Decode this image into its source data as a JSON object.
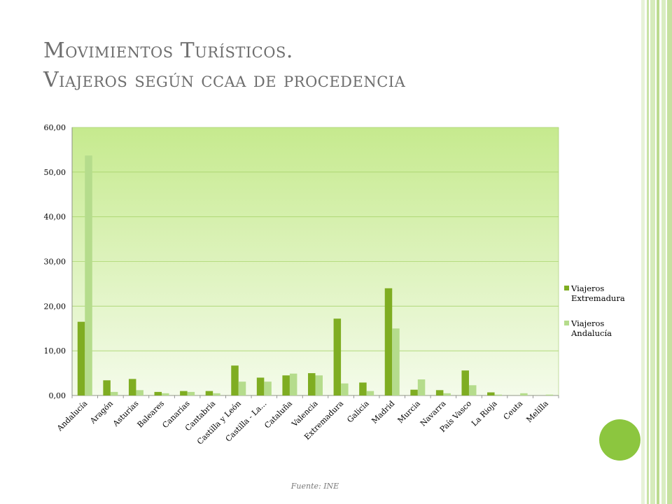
{
  "title": {
    "line1": "Movimientos Turísticos.",
    "line2": "Viajeros según ccaa de procedencia"
  },
  "source": "Fuente: INE",
  "colors": {
    "series1": "#7fad22",
    "series2": "#b5dc8c",
    "plot_top": "#c6ea8e",
    "plot_bottom": "#f4fbea",
    "accent_circle": "#8cc63f",
    "band": "#cfe6ad"
  },
  "chart_data": {
    "type": "bar",
    "title": "",
    "xlabel": "",
    "ylabel": "",
    "ylim": [
      0,
      60
    ],
    "yticks": [
      "0,00",
      "10,00",
      "20,00",
      "30,00",
      "40,00",
      "50,00",
      "60,00"
    ],
    "grid": true,
    "legend_position": "right",
    "categories": [
      "Andalucía",
      "Aragón",
      "Asturias",
      "Baleares",
      "Canarias",
      "Cantabria",
      "Castilla y León",
      "Castilla - La...",
      "Cataluña",
      "Valencia",
      "Extremadura",
      "Galicia",
      "Madrid",
      "Murcia",
      "Navarra",
      "País Vasco",
      "La Rioja",
      "Ceuta",
      "Melilla"
    ],
    "series": [
      {
        "name": "Viajeros Extremadura",
        "legend_lines": [
          "Viajeros",
          "Extremadura"
        ],
        "values": [
          16.5,
          3.4,
          3.7,
          0.8,
          1.0,
          1.0,
          6.7,
          4.0,
          4.5,
          5.0,
          17.2,
          2.9,
          24.0,
          1.3,
          1.2,
          5.6,
          0.7,
          0.0,
          0.0
        ]
      },
      {
        "name": "Viajeros Andalucía",
        "legend_lines": [
          "Viajeros",
          "Andalucía"
        ],
        "values": [
          53.7,
          0.8,
          1.2,
          0.5,
          0.8,
          0.5,
          3.1,
          3.1,
          4.9,
          4.5,
          2.7,
          1.0,
          15.0,
          3.6,
          0.5,
          2.3,
          0.2,
          0.5,
          0.2
        ]
      }
    ]
  }
}
